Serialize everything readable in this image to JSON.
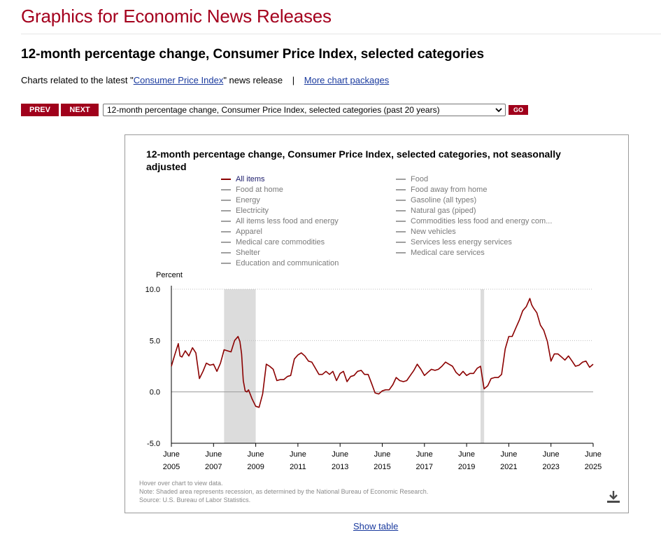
{
  "header": {
    "site_title": "Graphics for Economic News Releases",
    "page_title": "12-month percentage change, Consumer Price Index, selected categories",
    "related_prefix": "Charts related to the latest \"",
    "related_link": "Consumer Price Index",
    "related_suffix": "\" news release",
    "separator": "|",
    "more_link": "More chart packages"
  },
  "nav": {
    "prev_label": "PREV",
    "next_label": "NEXT",
    "selected": "12-month percentage change, Consumer Price Index, selected categories (past 20 years)",
    "go_label": "GO"
  },
  "colors": {
    "brand": "#a4001d",
    "series_active": "#8b0000",
    "series_inactive": "#a0a0a0",
    "recession": "#dcdcdc"
  },
  "chart_data": {
    "type": "line",
    "title": "12-month percentage change, Consumer Price Index, selected categories, not seasonally adjusted",
    "ylabel": "Percent",
    "ylim": [
      -5.0,
      10.0
    ],
    "yticks": [
      "10.0",
      "5.0",
      "0.0",
      "-5.0"
    ],
    "ytick_values": [
      10,
      5,
      0,
      -5
    ],
    "xlim": [
      2005.42,
      2025.42
    ],
    "xticks": [
      {
        "month": "June",
        "year": "2005",
        "x": 2005.42
      },
      {
        "month": "June",
        "year": "2007",
        "x": 2007.42
      },
      {
        "month": "June",
        "year": "2009",
        "x": 2009.42
      },
      {
        "month": "June",
        "year": "2011",
        "x": 2011.42
      },
      {
        "month": "June",
        "year": "2013",
        "x": 2013.42
      },
      {
        "month": "June",
        "year": "2015",
        "x": 2015.42
      },
      {
        "month": "June",
        "year": "2017",
        "x": 2017.42
      },
      {
        "month": "June",
        "year": "2019",
        "x": 2019.42
      },
      {
        "month": "June",
        "year": "2021",
        "x": 2021.42
      },
      {
        "month": "June",
        "year": "2023",
        "x": 2023.42
      },
      {
        "month": "June",
        "year": "2025",
        "x": 2025.42
      }
    ],
    "grid": true,
    "legend": {
      "placement": "top",
      "left": [
        "All items",
        "Food at home",
        "Energy",
        "Electricity",
        "All items less food and energy",
        "Apparel",
        "Medical care commodities",
        "Shelter",
        "Education and communication"
      ],
      "right": [
        "Food",
        "Food away from home",
        "Gasoline (all types)",
        "Natural gas (piped)",
        "Commodities less food and energy com...",
        "New vehicles",
        "Services less energy services",
        "Medical care services"
      ],
      "active": "All items"
    },
    "recessions": [
      [
        2007.92,
        2009.42
      ],
      [
        2020.08,
        2020.25
      ]
    ],
    "series": [
      {
        "name": "All items",
        "x": [
          2005.42,
          2005.58,
          2005.75,
          2005.83,
          2005.92,
          2006.08,
          2006.25,
          2006.42,
          2006.58,
          2006.75,
          2006.92,
          2007.08,
          2007.25,
          2007.42,
          2007.58,
          2007.75,
          2007.92,
          2008.08,
          2008.25,
          2008.42,
          2008.58,
          2008.67,
          2008.75,
          2008.83,
          2008.92,
          2009.0,
          2009.08,
          2009.25,
          2009.42,
          2009.58,
          2009.75,
          2009.92,
          2010.08,
          2010.25,
          2010.42,
          2010.58,
          2010.75,
          2010.92,
          2011.08,
          2011.25,
          2011.42,
          2011.58,
          2011.75,
          2011.92,
          2012.08,
          2012.25,
          2012.42,
          2012.58,
          2012.75,
          2012.92,
          2013.08,
          2013.25,
          2013.42,
          2013.58,
          2013.75,
          2013.92,
          2014.08,
          2014.25,
          2014.42,
          2014.58,
          2014.75,
          2014.92,
          2015.08,
          2015.25,
          2015.42,
          2015.58,
          2015.75,
          2015.92,
          2016.08,
          2016.25,
          2016.42,
          2016.58,
          2016.75,
          2016.92,
          2017.08,
          2017.25,
          2017.42,
          2017.58,
          2017.75,
          2017.92,
          2018.08,
          2018.25,
          2018.42,
          2018.58,
          2018.75,
          2018.92,
          2019.08,
          2019.25,
          2019.42,
          2019.58,
          2019.75,
          2019.92,
          2020.08,
          2020.25,
          2020.42,
          2020.58,
          2020.75,
          2020.92,
          2021.08,
          2021.25,
          2021.42,
          2021.58,
          2021.75,
          2021.92,
          2022.08,
          2022.25,
          2022.42,
          2022.5,
          2022.58,
          2022.75,
          2022.92,
          2023.08,
          2023.25,
          2023.42,
          2023.58,
          2023.75,
          2023.92,
          2024.08,
          2024.25,
          2024.42,
          2024.58,
          2024.75,
          2024.92,
          2025.08,
          2025.25,
          2025.42
        ],
        "y": [
          2.5,
          3.6,
          4.7,
          3.5,
          3.4,
          4.0,
          3.5,
          4.3,
          3.8,
          1.3,
          2.0,
          2.8,
          2.6,
          2.7,
          2.0,
          2.8,
          4.1,
          4.0,
          3.9,
          5.0,
          5.4,
          4.9,
          3.7,
          1.1,
          0.1,
          0.0,
          0.2,
          -0.7,
          -1.4,
          -1.5,
          -0.2,
          2.7,
          2.5,
          2.2,
          1.1,
          1.2,
          1.2,
          1.5,
          1.6,
          3.2,
          3.6,
          3.8,
          3.5,
          3.0,
          2.9,
          2.3,
          1.7,
          1.7,
          2.0,
          1.7,
          2.0,
          1.1,
          1.8,
          2.0,
          1.0,
          1.5,
          1.6,
          2.0,
          2.1,
          1.7,
          1.7,
          0.8,
          -0.1,
          -0.2,
          0.1,
          0.2,
          0.2,
          0.7,
          1.4,
          1.1,
          1.0,
          1.1,
          1.6,
          2.1,
          2.7,
          2.2,
          1.6,
          1.9,
          2.2,
          2.1,
          2.2,
          2.5,
          2.9,
          2.7,
          2.5,
          1.9,
          1.6,
          2.0,
          1.6,
          1.8,
          1.8,
          2.3,
          2.5,
          0.3,
          0.6,
          1.3,
          1.4,
          1.4,
          1.7,
          4.2,
          5.4,
          5.4,
          6.2,
          7.0,
          7.9,
          8.3,
          9.1,
          8.5,
          8.2,
          7.7,
          6.5,
          6.0,
          4.9,
          3.0,
          3.7,
          3.7,
          3.4,
          3.1,
          3.5,
          3.0,
          2.5,
          2.6,
          2.9,
          3.0,
          2.4,
          2.7
        ]
      }
    ]
  },
  "notes": {
    "hover": "Hover over chart to view data.",
    "recession": "Note: Shaded area represents recession, as determined by the National Bureau of Economic Research.",
    "source": "Source: U.S. Bureau of Labor Statistics."
  },
  "footer": {
    "show_table": "Show table"
  },
  "icons": {
    "download": "download-icon",
    "chevron": "chevron-down-icon"
  }
}
